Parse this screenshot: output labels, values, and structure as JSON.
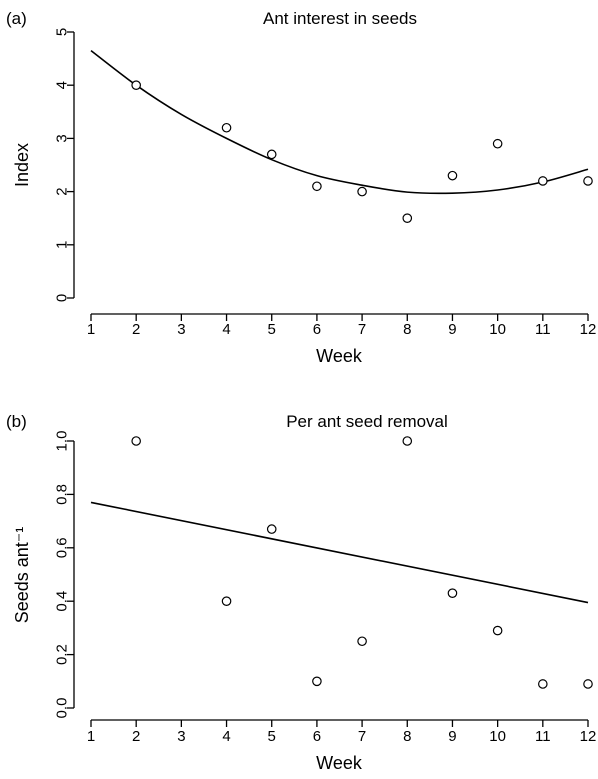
{
  "chart_data": [
    {
      "type": "scatter",
      "panel_label": "(a)",
      "title": "Ant interest in seeds",
      "xlabel": "Week",
      "ylabel": "Index",
      "xlim": [
        1,
        12
      ],
      "ylim": [
        0,
        5
      ],
      "xticks": [
        "1",
        "2",
        "3",
        "4",
        "5",
        "6",
        "7",
        "8",
        "9",
        "10",
        "11",
        "12"
      ],
      "yticks": [
        "0",
        "1",
        "2",
        "3",
        "4",
        "5"
      ],
      "points": {
        "x": [
          2,
          4,
          5,
          6,
          7,
          8,
          9,
          10,
          11,
          12
        ],
        "y": [
          4.0,
          3.2,
          2.7,
          2.1,
          2.0,
          1.5,
          2.3,
          2.9,
          2.2,
          2.2
        ]
      },
      "fit": {
        "kind": "curve",
        "x": [
          1,
          2,
          3,
          4,
          5,
          6,
          7,
          8,
          9,
          10,
          11,
          12
        ],
        "y": [
          4.65,
          4.0,
          3.45,
          3.0,
          2.6,
          2.3,
          2.12,
          1.99,
          1.97,
          2.03,
          2.18,
          2.42
        ]
      },
      "grid": false
    },
    {
      "type": "scatter",
      "panel_label": "(b)",
      "title": "Per ant seed removal",
      "xlabel": "Week",
      "ylabel": "Seeds ant⁻¹",
      "xlim": [
        1,
        12
      ],
      "ylim": [
        0,
        1
      ],
      "xticks": [
        "1",
        "2",
        "3",
        "4",
        "5",
        "6",
        "7",
        "8",
        "9",
        "10",
        "11",
        "12"
      ],
      "yticks": [
        "0.0",
        "0.2",
        "0.4",
        "0.6",
        "0.8",
        "1.0"
      ],
      "points": {
        "x": [
          2,
          4,
          5,
          6,
          7,
          8,
          9,
          10,
          11,
          12
        ],
        "y": [
          1.0,
          0.4,
          0.67,
          0.1,
          0.25,
          1.0,
          0.43,
          0.29,
          0.09,
          0.09
        ]
      },
      "fit": {
        "kind": "line",
        "x": [
          1,
          12
        ],
        "y": [
          0.77,
          0.395
        ]
      },
      "grid": false
    }
  ]
}
